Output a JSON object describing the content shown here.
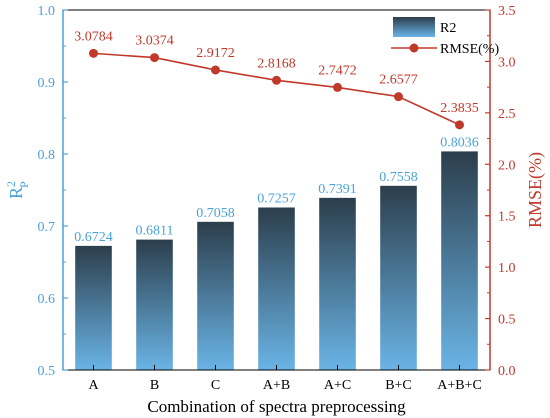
{
  "chart_data": {
    "type": "bar",
    "categories": [
      "A",
      "B",
      "C",
      "A+B",
      "A+C",
      "B+C",
      "A+B+C"
    ],
    "series": [
      {
        "name": "R2",
        "type": "bar",
        "axis": "left",
        "values": [
          0.6724,
          0.6811,
          0.7058,
          0.7257,
          0.7391,
          0.7558,
          0.8036
        ],
        "labels": [
          "0.6724",
          "0.6811",
          "0.7058",
          "0.7257",
          "0.7391",
          "0.7558",
          "0.8036"
        ]
      },
      {
        "name": "RMSE(%)",
        "type": "line",
        "axis": "right",
        "values": [
          3.0784,
          3.0374,
          2.9172,
          2.8168,
          2.7472,
          2.6577,
          2.3835
        ],
        "labels": [
          "3.0784",
          "3.0374",
          "2.9172",
          "2.8168",
          "2.7472",
          "2.6577",
          "2.3835"
        ]
      }
    ],
    "xlabel": "Combination of spectra preprocessing",
    "ylabel_left": {
      "base": "R",
      "sup": "2",
      "sub": "P"
    },
    "ylabel_right": "RMSE(%)",
    "ylim_left": [
      0.5,
      1.0
    ],
    "ylim_right": [
      0.0,
      3.5
    ],
    "yticks_left": [
      "0.5",
      "0.6",
      "0.7",
      "0.8",
      "0.9",
      "1.0"
    ],
    "yticks_right": [
      "0.0",
      "0.5",
      "1.0",
      "1.5",
      "2.0",
      "2.5",
      "3.0",
      "3.5"
    ],
    "grid": false,
    "legend_position": "top-right",
    "colors": {
      "bar_top": "#2c3e4c",
      "bar_bottom": "#6ab4e6",
      "line": "#c0392b",
      "left_axis": "#4aa3d8",
      "right_axis": "#c0392b",
      "axis_black": "#000000"
    }
  }
}
